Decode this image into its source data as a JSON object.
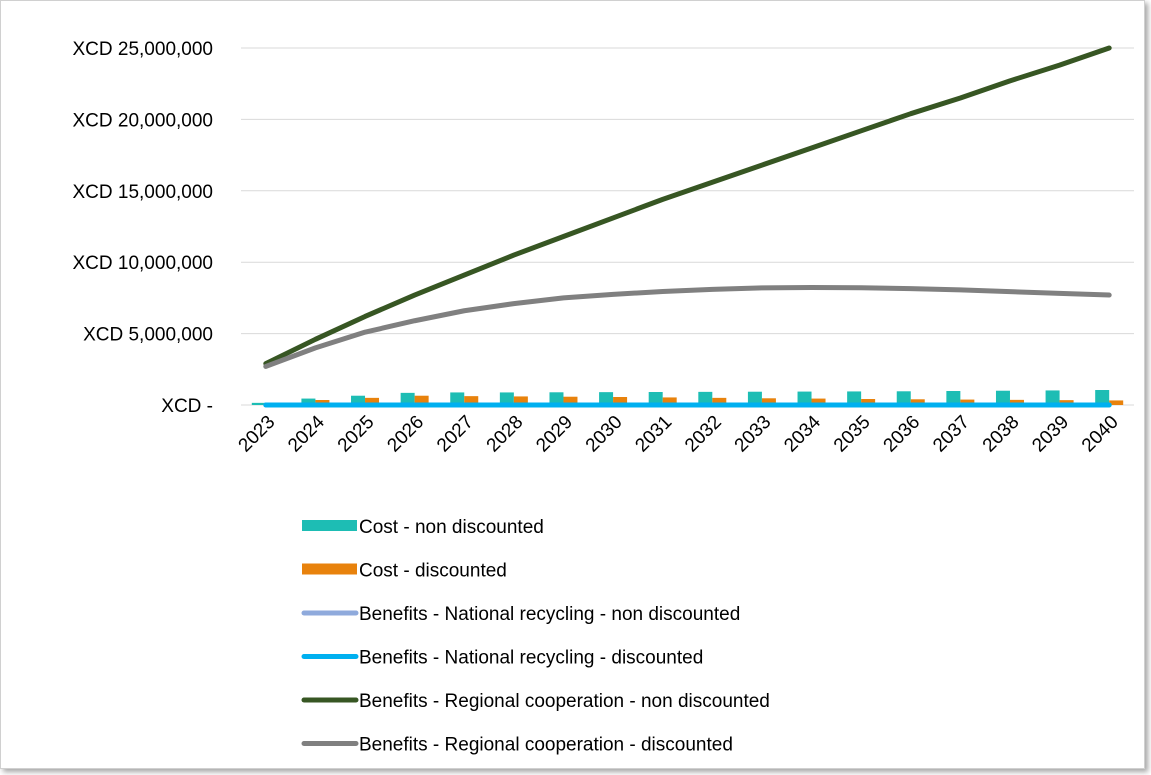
{
  "chart_data": {
    "type": "bar",
    "title": "",
    "xlabel": "",
    "ylabel": "",
    "currency_prefix": "XCD",
    "ylim": [
      0,
      25000000
    ],
    "yticks": [
      0,
      5000000,
      10000000,
      15000000,
      20000000,
      25000000
    ],
    "ytick_labels": [
      "XCD -",
      "XCD 5,000,000",
      "XCD 10,000,000",
      "XCD 15,000,000",
      "XCD 20,000,000",
      "XCD 25,000,000"
    ],
    "grid": true,
    "legend_position": "bottom",
    "categories": [
      "2023",
      "2024",
      "2025",
      "2026",
      "2027",
      "2028",
      "2029",
      "2030",
      "2031",
      "2032",
      "2033",
      "2034",
      "2035",
      "2036",
      "2037",
      "2038",
      "2039",
      "2040"
    ],
    "bar_series": [
      {
        "name": "Cost - non discounted",
        "color": "#1dbdb4",
        "values": [
          150000,
          450000,
          650000,
          850000,
          880000,
          880000,
          890000,
          900000,
          910000,
          920000,
          930000,
          940000,
          950000,
          960000,
          980000,
          1000000,
          1020000,
          1050000
        ]
      },
      {
        "name": "Cost - discounted",
        "color": "#e8820c",
        "values": [
          140000,
          350000,
          500000,
          650000,
          620000,
          600000,
          580000,
          560000,
          530000,
          500000,
          470000,
          450000,
          420000,
          400000,
          380000,
          360000,
          340000,
          320000
        ]
      }
    ],
    "line_series": [
      {
        "name": "Benefits - National recycling - non discounted",
        "color": "#8faadc",
        "values": [
          0,
          0,
          0,
          0,
          0,
          0,
          0,
          0,
          0,
          0,
          0,
          0,
          0,
          0,
          0,
          0,
          0,
          0
        ]
      },
      {
        "name": "Benefits - National recycling - discounted",
        "color": "#00b0f0",
        "values": [
          0,
          0,
          0,
          0,
          0,
          0,
          0,
          0,
          0,
          0,
          0,
          0,
          0,
          0,
          0,
          0,
          0,
          0
        ]
      },
      {
        "name": "Benefits - Regional cooperation - non discounted",
        "color": "#375623",
        "values": [
          2900000,
          4600000,
          6200000,
          7700000,
          9100000,
          10500000,
          11800000,
          13100000,
          14400000,
          15600000,
          16800000,
          18000000,
          19200000,
          20400000,
          21500000,
          22700000,
          23800000,
          25000000
        ]
      },
      {
        "name": "Benefits - Regional cooperation - discounted",
        "color": "#808080",
        "values": [
          2700000,
          4000000,
          5100000,
          5900000,
          6600000,
          7100000,
          7500000,
          7750000,
          7950000,
          8100000,
          8200000,
          8230000,
          8210000,
          8150000,
          8060000,
          7940000,
          7820000,
          7700000
        ]
      }
    ]
  }
}
